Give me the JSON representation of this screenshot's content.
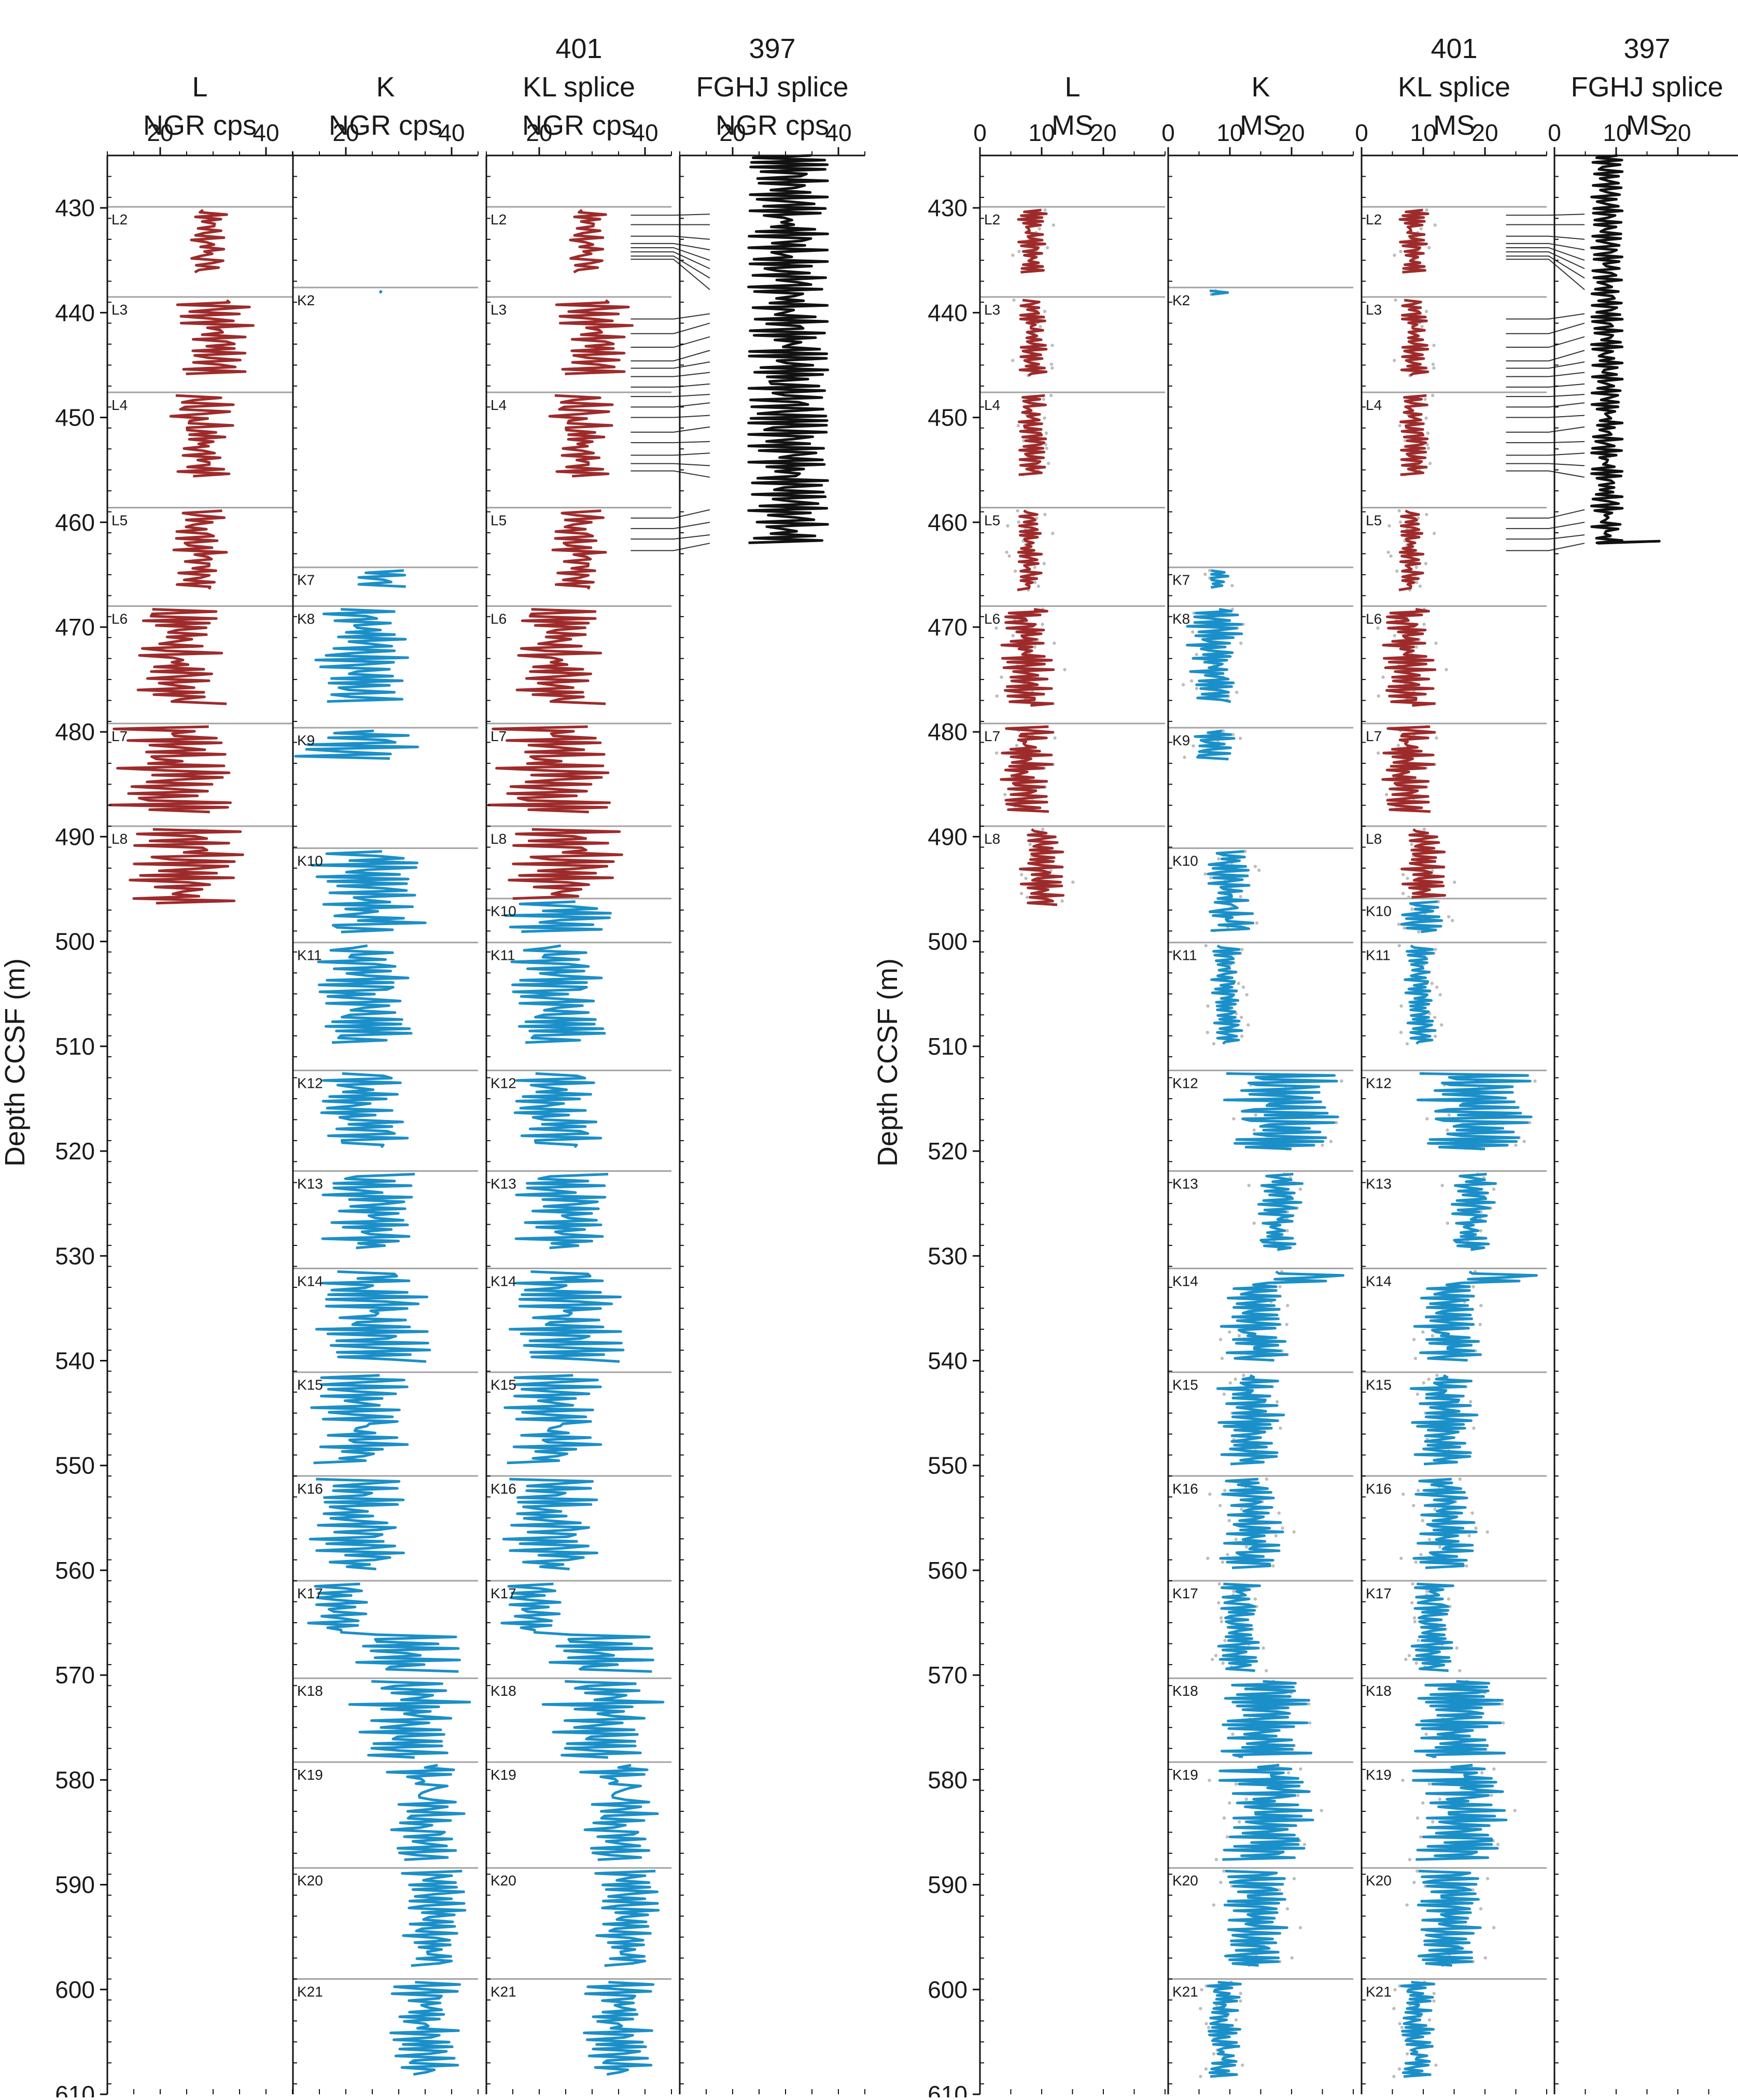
{
  "colors": {
    "L": "#9e2b2b",
    "K": "#1b8fc8",
    "splice397": "#111111",
    "raw": "#bdbdbd",
    "coreline": "#a3a3a3",
    "tie": "#333333"
  },
  "ylabel": "Depth CCSF (m)",
  "chart_data": [
    {
      "type": "line",
      "title": "",
      "ylabel": "Depth CCSF (m)",
      "ylim": [
        610,
        425
      ],
      "yticks": [
        430,
        440,
        450,
        460,
        470,
        480,
        490,
        500,
        510,
        520,
        530,
        540,
        550,
        560,
        570,
        580,
        590,
        600,
        610
      ],
      "panels": [
        {
          "id": "ngr-L",
          "header": [
            "L",
            "NGR cps"
          ],
          "xlim": [
            10,
            45
          ],
          "xticks": [
            "20",
            "40"
          ],
          "series": "L",
          "cores": [
            {
              "name": "L2",
              "top": 429.9,
              "bot": 436.2
            },
            {
              "name": "L3",
              "top": 438.5,
              "bot": 446.0
            },
            {
              "name": "L4",
              "top": 447.6,
              "bot": 455.6
            },
            {
              "name": "L5",
              "top": 458.6,
              "bot": 466.5
            },
            {
              "name": "L6",
              "top": 468.0,
              "bot": 477.5
            },
            {
              "name": "L7",
              "top": 479.2,
              "bot": 487.7
            },
            {
              "name": "L8",
              "top": 489.0,
              "bot": 496.5
            }
          ]
        },
        {
          "id": "ngr-K",
          "header": [
            "K",
            "NGR cps"
          ],
          "xlim": [
            10,
            45
          ],
          "xticks": [
            "20",
            "40"
          ],
          "series": "K",
          "cores": [
            {
              "name": "K2",
              "top": 437.6,
              "bot": 438.3
            },
            {
              "name": "K7",
              "top": 464.3,
              "bot": 466.3
            },
            {
              "name": "K8",
              "top": 468.0,
              "bot": 477.2
            },
            {
              "name": "K9",
              "top": 479.6,
              "bot": 482.7
            },
            {
              "name": "K10",
              "top": 491.1,
              "bot": 499.1
            },
            {
              "name": "K11",
              "top": 500.1,
              "bot": 509.8
            },
            {
              "name": "K12",
              "top": 512.3,
              "bot": 519.8
            },
            {
              "name": "K13",
              "top": 521.9,
              "bot": 529.4
            },
            {
              "name": "K14",
              "top": 531.2,
              "bot": 540.1
            },
            {
              "name": "K15",
              "top": 541.1,
              "bot": 549.9
            },
            {
              "name": "K16",
              "top": 551.0,
              "bot": 559.9
            },
            {
              "name": "K17",
              "top": 561.0,
              "bot": 569.7
            },
            {
              "name": "K18",
              "top": 570.3,
              "bot": 577.9
            },
            {
              "name": "K19",
              "top": 578.3,
              "bot": 587.7
            },
            {
              "name": "K20",
              "top": 588.4,
              "bot": 597.8
            },
            {
              "name": "K21",
              "top": 599.0,
              "bot": 608.3
            }
          ]
        },
        {
          "id": "ngr-KL",
          "header": [
            "401",
            "KL splice",
            "NGR cps"
          ],
          "xlim": [
            10,
            45
          ],
          "xticks": [
            "20",
            "40"
          ],
          "series": "KL",
          "cores": [
            {
              "name": "L2",
              "top": 429.9,
              "bot": 436.2
            },
            {
              "name": "L3",
              "top": 438.5,
              "bot": 446.0
            },
            {
              "name": "L4",
              "top": 447.6,
              "bot": 455.6
            },
            {
              "name": "L5",
              "top": 458.6,
              "bot": 466.5
            },
            {
              "name": "L6",
              "top": 468.0,
              "bot": 477.5
            },
            {
              "name": "L7",
              "top": 479.2,
              "bot": 487.7
            },
            {
              "name": "L8",
              "top": 489.0,
              "bot": 495.9
            },
            {
              "name": "K10",
              "top": 495.9,
              "bot": 499.1
            },
            {
              "name": "K11",
              "top": 500.1,
              "bot": 509.8
            },
            {
              "name": "K12",
              "top": 512.3,
              "bot": 519.8
            },
            {
              "name": "K13",
              "top": 521.9,
              "bot": 529.4
            },
            {
              "name": "K14",
              "top": 531.2,
              "bot": 540.1
            },
            {
              "name": "K15",
              "top": 541.1,
              "bot": 549.9
            },
            {
              "name": "K16",
              "top": 551.0,
              "bot": 559.9
            },
            {
              "name": "K17",
              "top": 561.0,
              "bot": 569.7
            },
            {
              "name": "K18",
              "top": 570.3,
              "bot": 577.9
            },
            {
              "name": "K19",
              "top": 578.3,
              "bot": 587.7
            },
            {
              "name": "K20",
              "top": 588.4,
              "bot": 597.8
            },
            {
              "name": "K21",
              "top": 599.0,
              "bot": 608.3
            }
          ]
        },
        {
          "id": "ngr-397",
          "header": [
            "397",
            "FGHJ splice",
            "NGR cps"
          ],
          "xlim": [
            10,
            45
          ],
          "xticks": [
            "20",
            "40"
          ],
          "series": "S397",
          "top": 425.0,
          "bot": 462.0
        },
        {
          "id": "ms-L",
          "header": [
            "L",
            "MS"
          ],
          "xlim": [
            0,
            30
          ],
          "xticks": [
            "0",
            "10",
            "20"
          ],
          "series": "L",
          "cores": [
            {
              "name": "L2",
              "top": 429.9,
              "bot": 436.2
            },
            {
              "name": "L3",
              "top": 438.5,
              "bot": 446.0
            },
            {
              "name": "L4",
              "top": 447.6,
              "bot": 455.6
            },
            {
              "name": "L5",
              "top": 458.6,
              "bot": 466.5
            },
            {
              "name": "L6",
              "top": 468.0,
              "bot": 477.5
            },
            {
              "name": "L7",
              "top": 479.2,
              "bot": 487.7
            },
            {
              "name": "L8",
              "top": 489.0,
              "bot": 496.5
            }
          ]
        },
        {
          "id": "ms-K",
          "header": [
            "K",
            "MS"
          ],
          "xlim": [
            0,
            30
          ],
          "xticks": [
            "0",
            "10",
            "20"
          ],
          "series": "K",
          "cores": [
            {
              "name": "K2",
              "top": 437.6,
              "bot": 438.3
            },
            {
              "name": "K7",
              "top": 464.3,
              "bot": 466.3
            },
            {
              "name": "K8",
              "top": 468.0,
              "bot": 477.2
            },
            {
              "name": "K9",
              "top": 479.6,
              "bot": 482.7
            },
            {
              "name": "K10",
              "top": 491.1,
              "bot": 499.1
            },
            {
              "name": "K11",
              "top": 500.1,
              "bot": 509.8
            },
            {
              "name": "K12",
              "top": 512.3,
              "bot": 519.8
            },
            {
              "name": "K13",
              "top": 521.9,
              "bot": 529.4
            },
            {
              "name": "K14",
              "top": 531.2,
              "bot": 540.1
            },
            {
              "name": "K15",
              "top": 541.1,
              "bot": 549.9
            },
            {
              "name": "K16",
              "top": 551.0,
              "bot": 559.9
            },
            {
              "name": "K17",
              "top": 561.0,
              "bot": 569.7
            },
            {
              "name": "K18",
              "top": 570.3,
              "bot": 577.9
            },
            {
              "name": "K19",
              "top": 578.3,
              "bot": 587.7
            },
            {
              "name": "K20",
              "top": 588.4,
              "bot": 597.8
            },
            {
              "name": "K21",
              "top": 599.0,
              "bot": 608.3
            }
          ]
        },
        {
          "id": "ms-KL",
          "header": [
            "401",
            "KL splice",
            "MS"
          ],
          "xlim": [
            0,
            30
          ],
          "xticks": [
            "0",
            "10",
            "20"
          ],
          "series": "KL",
          "cores": [
            {
              "name": "L2",
              "top": 429.9,
              "bot": 436.2
            },
            {
              "name": "L3",
              "top": 438.5,
              "bot": 446.0
            },
            {
              "name": "L4",
              "top": 447.6,
              "bot": 455.6
            },
            {
              "name": "L5",
              "top": 458.6,
              "bot": 466.5
            },
            {
              "name": "L6",
              "top": 468.0,
              "bot": 477.5
            },
            {
              "name": "L7",
              "top": 479.2,
              "bot": 487.7
            },
            {
              "name": "L8",
              "top": 489.0,
              "bot": 495.9
            },
            {
              "name": "K10",
              "top": 495.9,
              "bot": 499.1
            },
            {
              "name": "K11",
              "top": 500.1,
              "bot": 509.8
            },
            {
              "name": "K12",
              "top": 512.3,
              "bot": 519.8
            },
            {
              "name": "K13",
              "top": 521.9,
              "bot": 529.4
            },
            {
              "name": "K14",
              "top": 531.2,
              "bot": 540.1
            },
            {
              "name": "K15",
              "top": 541.1,
              "bot": 549.9
            },
            {
              "name": "K16",
              "top": 551.0,
              "bot": 559.9
            },
            {
              "name": "K17",
              "top": 561.0,
              "bot": 569.7
            },
            {
              "name": "K18",
              "top": 570.3,
              "bot": 577.9
            },
            {
              "name": "K19",
              "top": 578.3,
              "bot": 587.7
            },
            {
              "name": "K20",
              "top": 588.4,
              "bot": 597.8
            },
            {
              "name": "K21",
              "top": 599.0,
              "bot": 608.3
            }
          ]
        },
        {
          "id": "ms-397",
          "header": [
            "397",
            "FGHJ splice",
            "MS"
          ],
          "xlim": [
            0,
            30
          ],
          "xticks": [
            "0",
            "10",
            "20"
          ],
          "series": "S397",
          "top": 425.0,
          "bot": 462.0
        }
      ],
      "ngr_ranges": [
        {
          "from": 429.9,
          "to": 436.2,
          "min": 25,
          "max": 33
        },
        {
          "from": 438.5,
          "to": 446.0,
          "min": 23,
          "max": 38
        },
        {
          "from": 447.6,
          "to": 455.6,
          "min": 21,
          "max": 35
        },
        {
          "from": 458.6,
          "to": 466.5,
          "min": 22,
          "max": 33
        },
        {
          "from": 468.0,
          "to": 477.5,
          "min": 14,
          "max": 33
        },
        {
          "from": 479.2,
          "to": 487.7,
          "min": 10,
          "max": 36
        },
        {
          "from": 489.0,
          "to": 499.1,
          "min": 13,
          "max": 36
        },
        {
          "from": 500.1,
          "to": 509.8,
          "min": 14,
          "max": 33
        },
        {
          "from": 512.3,
          "to": 519.8,
          "min": 14,
          "max": 32
        },
        {
          "from": 521.9,
          "to": 529.4,
          "min": 14,
          "max": 35
        },
        {
          "from": 531.2,
          "to": 540.1,
          "min": 13,
          "max": 37
        },
        {
          "from": 541.1,
          "to": 549.9,
          "min": 13,
          "max": 33
        },
        {
          "from": 551.0,
          "to": 559.9,
          "min": 13,
          "max": 33
        },
        {
          "from": 561.0,
          "to": 566.0,
          "min": 12,
          "max": 25
        },
        {
          "from": 566.0,
          "to": 577.9,
          "min": 20,
          "max": 44
        },
        {
          "from": 578.3,
          "to": 587.7,
          "min": 27,
          "max": 43
        },
        {
          "from": 588.4,
          "to": 597.8,
          "min": 30,
          "max": 43
        },
        {
          "from": 599.0,
          "to": 608.3,
          "min": 28,
          "max": 42
        }
      ],
      "ms_ranges": [
        {
          "from": 429.9,
          "to": 456.0,
          "min": 6,
          "max": 11
        },
        {
          "from": 458.6,
          "to": 468.0,
          "min": 6,
          "max": 10
        },
        {
          "from": 468.0,
          "to": 487.7,
          "min": 3,
          "max": 12
        },
        {
          "from": 489.0,
          "to": 499.1,
          "min": 6,
          "max": 14
        },
        {
          "from": 500.1,
          "to": 509.8,
          "min": 7,
          "max": 12
        },
        {
          "from": 512.3,
          "to": 519.8,
          "min": 8,
          "max": 29
        },
        {
          "from": 521.9,
          "to": 529.4,
          "min": 14,
          "max": 22
        },
        {
          "from": 529.4,
          "to": 532.5,
          "min": 14,
          "max": 30
        },
        {
          "from": 532.5,
          "to": 540.1,
          "min": 8,
          "max": 20
        },
        {
          "from": 541.1,
          "to": 559.9,
          "min": 8,
          "max": 19
        },
        {
          "from": 561.0,
          "to": 570.0,
          "min": 8,
          "max": 15
        },
        {
          "from": 570.0,
          "to": 587.7,
          "min": 8,
          "max": 24
        },
        {
          "from": 588.4,
          "to": 597.8,
          "min": 8,
          "max": 20
        },
        {
          "from": 599.0,
          "to": 608.3,
          "min": 6,
          "max": 12
        }
      ],
      "s397_ngr_range": {
        "min": 23,
        "max": 38
      },
      "s397_ms_range": {
        "min": 6,
        "max": 11,
        "end_spike": 17
      },
      "ties": [
        [
          430.7,
          430.6
        ],
        [
          431.6,
          431.6
        ],
        [
          432.7,
          433.0
        ],
        [
          433.4,
          434.0
        ],
        [
          433.8,
          435.0
        ],
        [
          434.2,
          435.8
        ],
        [
          434.6,
          436.7
        ],
        [
          434.9,
          437.8
        ],
        [
          440.6,
          440.1
        ],
        [
          442.0,
          441.0
        ],
        [
          443.3,
          442.3
        ],
        [
          444.6,
          443.6
        ],
        [
          445.3,
          444.7
        ],
        [
          446.1,
          445.7
        ],
        [
          447.1,
          446.8
        ],
        [
          448.0,
          447.8
        ],
        [
          449.0,
          448.6
        ],
        [
          450.0,
          449.8
        ],
        [
          451.4,
          450.9
        ],
        [
          452.4,
          452.3
        ],
        [
          453.6,
          453.4
        ],
        [
          454.4,
          454.6
        ],
        [
          455.1,
          455.7
        ],
        [
          459.6,
          458.8
        ],
        [
          460.6,
          460.0
        ],
        [
          461.6,
          461.2
        ],
        [
          462.7,
          462.0
        ]
      ]
    }
  ]
}
